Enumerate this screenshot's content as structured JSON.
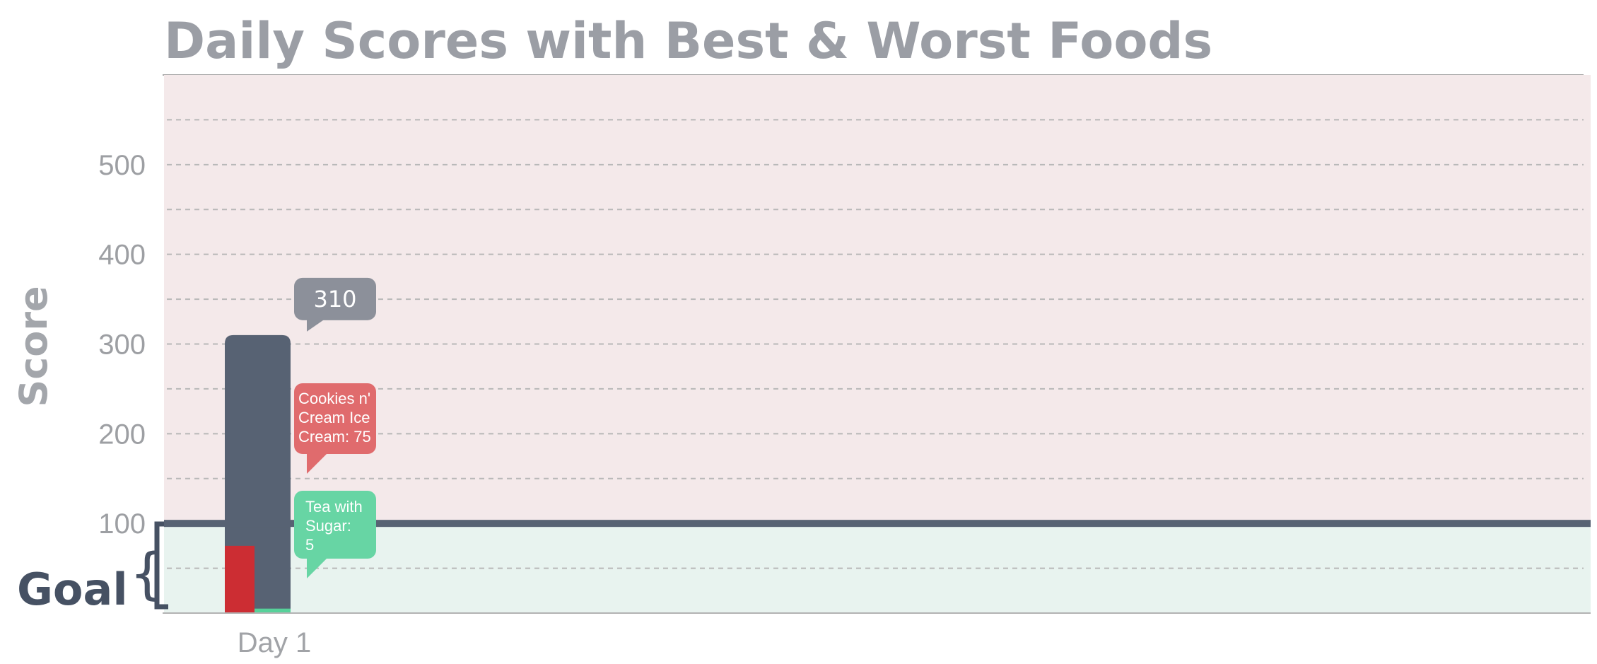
{
  "chart_data": {
    "type": "bar",
    "title": "Daily Scores with Best & Worst Foods",
    "xlabel": "",
    "ylabel": "Score",
    "categories": [
      "Day 1"
    ],
    "series": [
      {
        "values": [
          310
        ],
        "color": "#576273"
      },
      {
        "values": [
          75
        ],
        "color": "#cc2d33"
      },
      {
        "values": [
          5
        ],
        "color": "#57d19a"
      }
    ],
    "ylim": [
      0,
      600
    ],
    "yticks": [
      100,
      200,
      300,
      400,
      500
    ],
    "goal": {
      "label": "Goal",
      "value": 100
    },
    "zones": {
      "above_goal_color": "#f4e9ea",
      "below_goal_color": "#e8f3ef"
    },
    "grid": true,
    "annotations": [
      {
        "kind": "total",
        "text": "310",
        "color": "#8c909a"
      },
      {
        "kind": "worst",
        "lines": [
          "Cookies n'",
          "Cream Ice",
          "Cream: 75"
        ],
        "color": "#e06b6d"
      },
      {
        "kind": "best",
        "lines": [
          "Tea with",
          "Sugar:",
          "5"
        ],
        "color": "#67d5a4"
      }
    ]
  }
}
